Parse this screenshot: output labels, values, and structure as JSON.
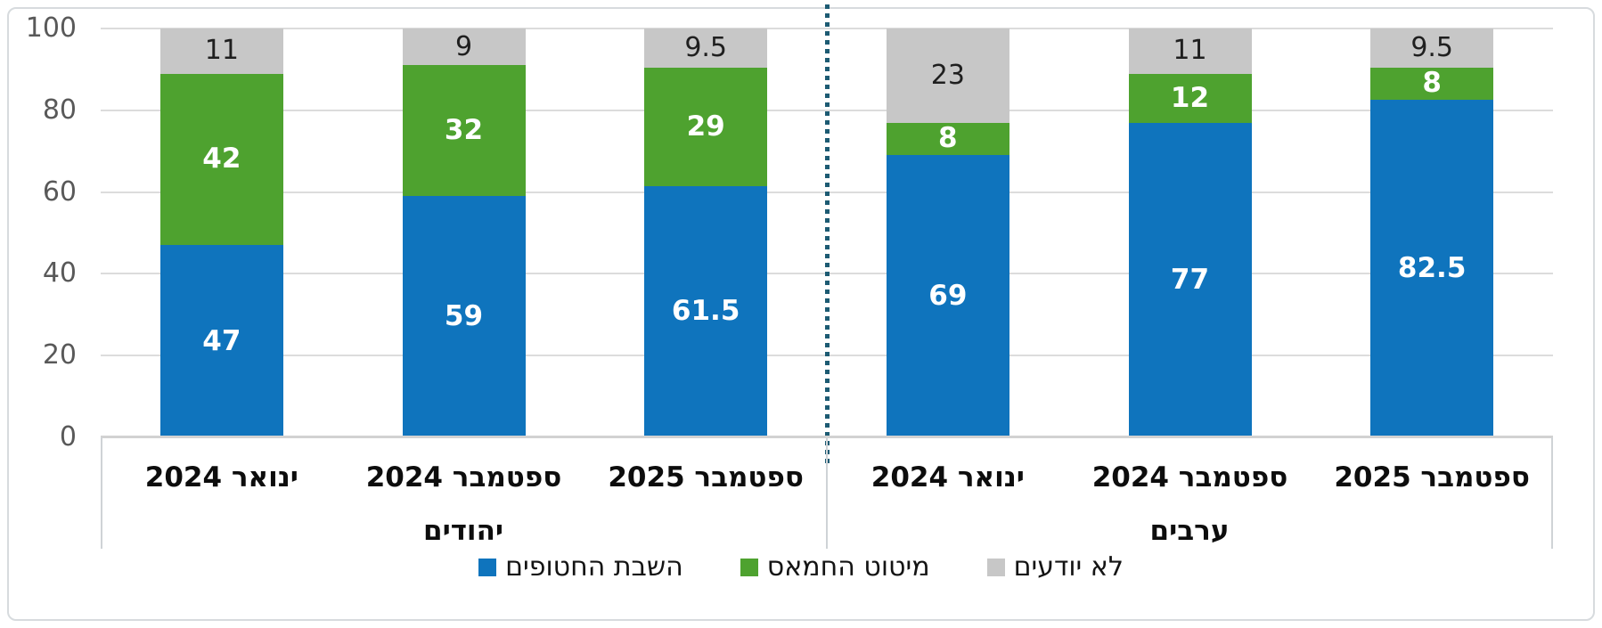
{
  "chart_data": {
    "type": "bar",
    "stacked": true,
    "rtl": true,
    "y_axis": {
      "ticks": [
        0,
        20,
        40,
        60,
        80,
        100
      ],
      "range": [
        0,
        100
      ],
      "grid": true
    },
    "series": [
      {
        "name": "השבת החטופים",
        "color": "#0f74bd",
        "label_color": "light"
      },
      {
        "name": "מיטוט החמאס",
        "color": "#4ea22f",
        "label_color": "light"
      },
      {
        "name": "לא יודעים",
        "color": "#c7c7c7",
        "label_color": "dark"
      }
    ],
    "groups": [
      {
        "label": "יהודים",
        "categories": [
          "ינואר 2024",
          "ספטמבר 2024",
          "ספטמבר 2025"
        ],
        "values": [
          [
            47,
            42,
            11
          ],
          [
            59,
            32,
            9
          ],
          [
            61.5,
            29,
            9.5
          ]
        ]
      },
      {
        "label": "ערבים",
        "categories": [
          "ינואר 2024",
          "ספטמבר 2024",
          "ספטמבר 2025"
        ],
        "values": [
          [
            69,
            8,
            23
          ],
          [
            77,
            12,
            11
          ],
          [
            82.5,
            8,
            9.5
          ]
        ]
      }
    ],
    "separator": {
      "style": "square-dot",
      "color": "#1d5b73"
    },
    "legend_position": "bottom-center"
  }
}
